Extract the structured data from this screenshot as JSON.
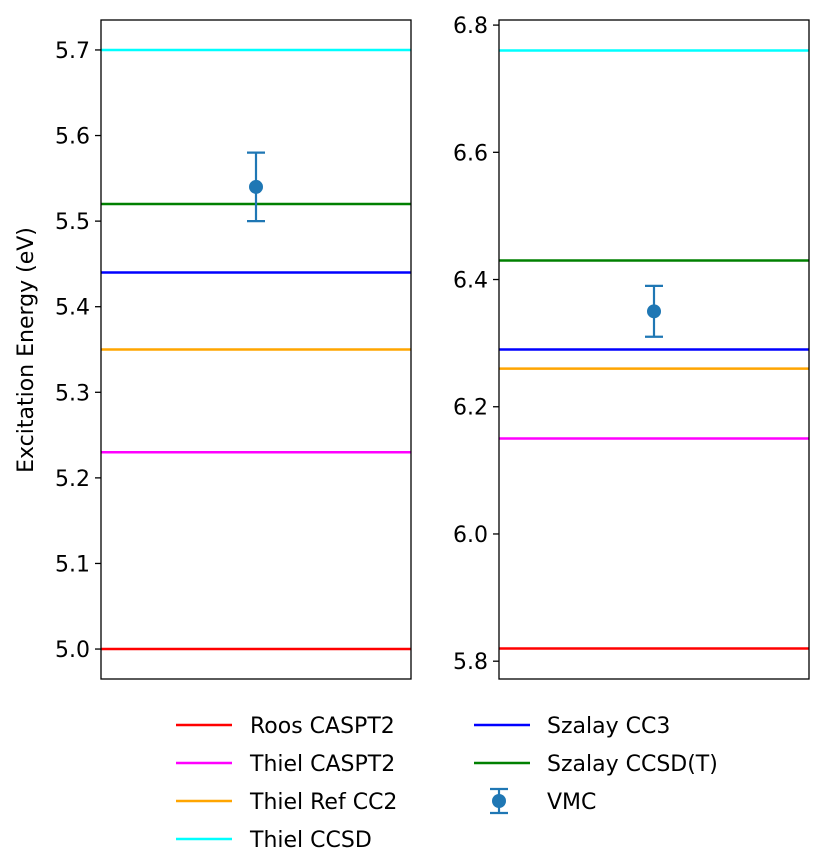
{
  "chart_data": {
    "type": "line",
    "ylabel": "Excitation Energy (eV)",
    "panels": [
      {
        "name": "left",
        "ylim": [
          4.965,
          5.735
        ],
        "yticks": [
          5.0,
          5.1,
          5.2,
          5.3,
          5.4,
          5.5,
          5.6,
          5.7
        ],
        "ytick_labels": [
          "5.0",
          "5.1",
          "5.2",
          "5.3",
          "5.4",
          "5.5",
          "5.6",
          "5.7"
        ],
        "lines": [
          {
            "name": "Roos CASPT2",
            "value": 5.0
          },
          {
            "name": "Thiel CASPT2",
            "value": 5.23
          },
          {
            "name": "Thiel Ref CC2",
            "value": 5.35
          },
          {
            "name": "Thiel CCSD",
            "value": 5.7
          },
          {
            "name": "Szalay CC3",
            "value": 5.44
          },
          {
            "name": "Szalay CCSD(T)",
            "value": 5.52
          }
        ],
        "vmc": {
          "value": 5.54,
          "error": 0.04
        }
      },
      {
        "name": "right",
        "ylim": [
          5.772,
          6.808
        ],
        "yticks": [
          5.8,
          6.0,
          6.2,
          6.4,
          6.6,
          6.8
        ],
        "ytick_labels": [
          "5.8",
          "6.0",
          "6.2",
          "6.4",
          "6.6",
          "6.8"
        ],
        "lines": [
          {
            "name": "Roos CASPT2",
            "value": 5.82
          },
          {
            "name": "Thiel CASPT2",
            "value": 6.15
          },
          {
            "name": "Thiel Ref CC2",
            "value": 6.26
          },
          {
            "name": "Thiel CCSD",
            "value": 6.76
          },
          {
            "name": "Szalay CC3",
            "value": 6.29
          },
          {
            "name": "Szalay CCSD(T)",
            "value": 6.43
          }
        ],
        "vmc": {
          "value": 6.35,
          "error": 0.04
        }
      }
    ],
    "legend": {
      "position": "bottom",
      "entries": [
        {
          "label": "Roos CASPT2",
          "color": "#ff0000",
          "kind": "line"
        },
        {
          "label": "Thiel CASPT2",
          "color": "#ff00ff",
          "kind": "line"
        },
        {
          "label": "Thiel Ref CC2",
          "color": "#ffa500",
          "kind": "line"
        },
        {
          "label": "Thiel CCSD",
          "color": "#00ffff",
          "kind": "line"
        },
        {
          "label": "Szalay CC3",
          "color": "#0000ff",
          "kind": "line"
        },
        {
          "label": "Szalay CCSD(T)",
          "color": "#008000",
          "kind": "line"
        },
        {
          "label": "VMC",
          "color": "#1f77b4",
          "kind": "errorbar"
        }
      ]
    }
  }
}
